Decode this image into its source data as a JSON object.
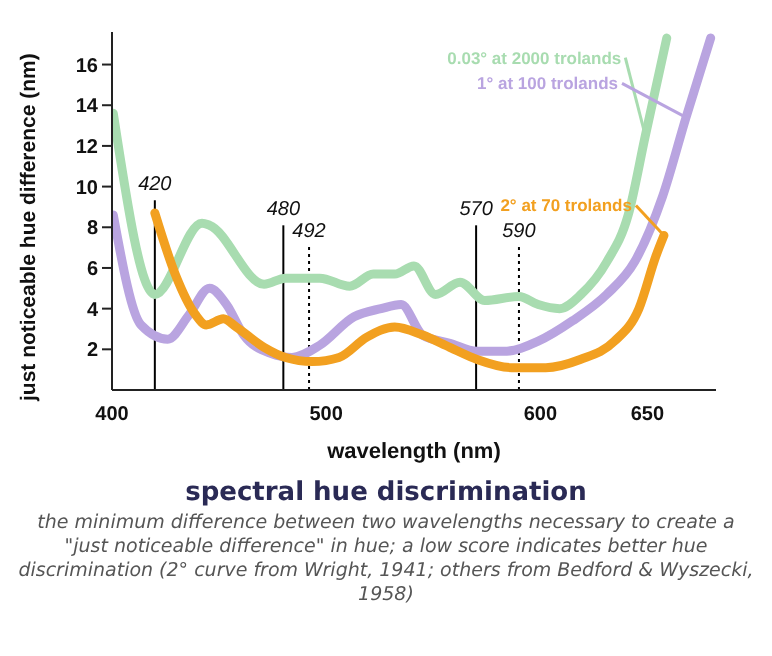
{
  "chart_data": {
    "type": "line",
    "title": "spectral hue discrimination",
    "xlabel": "wavelength (nm)",
    "ylabel": "just noticeable hue difference (nm)",
    "xlim": [
      400,
      682
    ],
    "xticks": [
      400,
      500,
      600,
      650
    ],
    "ylim": [
      0,
      17.6
    ],
    "yticks": [
      2,
      4,
      6,
      8,
      10,
      12,
      14,
      16
    ],
    "grid": false,
    "legend": false,
    "marker": "none",
    "line_style": "solid",
    "series": [
      {
        "name": "0.03° at 2000 trolands",
        "color": "#a8dcb0",
        "x": [
          400.6,
          420,
          442,
          445.5,
          471,
          481,
          497,
          511,
          522,
          532,
          541,
          551,
          562.5,
          574,
          590,
          599,
          609,
          619,
          631,
          641,
          649,
          659
        ],
        "values": [
          13.6,
          4.7,
          8.2,
          8.1,
          5.2,
          5.5,
          5.5,
          5.1,
          5.7,
          5.7,
          6.1,
          4.7,
          5.3,
          4.4,
          4.6,
          4.2,
          4.0,
          4.7,
          6.3,
          8.6,
          12.5,
          17.3
        ]
      },
      {
        "name": "1° at 100 trolands",
        "color": "#b9a4e0",
        "x": [
          400.6,
          413.5,
          426,
          436,
          445.5,
          453.5,
          461.5,
          474,
          484,
          497,
          513,
          525.6,
          535,
          545,
          557.7,
          570.5,
          583,
          599,
          615,
          631,
          644,
          657,
          668,
          679.5
        ],
        "values": [
          8.6,
          3.2,
          2.5,
          3.7,
          5.0,
          4.2,
          2.7,
          1.8,
          1.6,
          2.2,
          3.6,
          4.0,
          4.2,
          2.7,
          2.3,
          1.9,
          1.9,
          2.4,
          3.4,
          4.7,
          6.3,
          9.5,
          13.4,
          17.3
        ]
      },
      {
        "name": "2° at 70 trolands",
        "color": "#f2a020",
        "x": [
          420,
          429.5,
          439,
          444,
          452,
          458,
          471,
          481,
          493.6,
          506,
          519,
          532,
          545,
          557.7,
          570.5,
          586.5,
          602.5,
          618.6,
          634.6,
          646,
          654,
          657.7
        ],
        "values": [
          8.7,
          5.7,
          3.7,
          3.2,
          3.5,
          3.1,
          2.1,
          1.6,
          1.4,
          1.6,
          2.6,
          3.1,
          2.7,
          2.1,
          1.5,
          1.1,
          1.1,
          1.5,
          2.4,
          4.0,
          6.6,
          7.6
        ]
      }
    ],
    "ref_lines": [
      {
        "axis": "x",
        "value": 420,
        "label": "420",
        "line_style": "solid",
        "color": "#000000"
      },
      {
        "axis": "x",
        "value": 480,
        "label": "480",
        "line_style": "solid",
        "color": "#000000"
      },
      {
        "axis": "x",
        "value": 492,
        "label": "492",
        "line_style": "dotted",
        "color": "#000000"
      },
      {
        "axis": "x",
        "value": 570,
        "label": "570",
        "line_style": "solid",
        "color": "#000000"
      },
      {
        "axis": "x",
        "value": 590,
        "label": "590",
        "line_style": "dotted",
        "color": "#000000"
      }
    ],
    "annotations": [
      "the minimum difference between two wavelengths necessary to create a \"just noticeable difference\" in hue; a low score indicates better hue discrimination (2° curve from Wright, 1941; others from Bedford & Wyszecki, 1958)"
    ]
  }
}
